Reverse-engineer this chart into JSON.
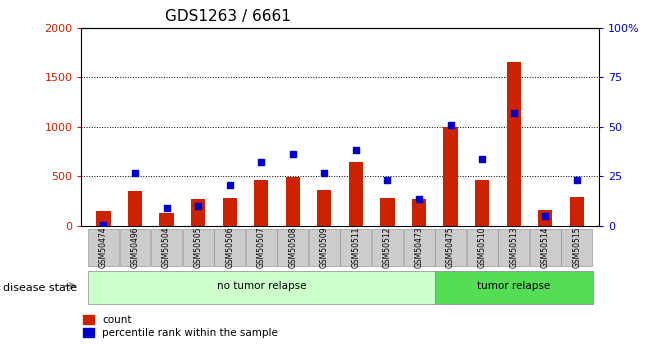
{
  "title": "GDS1263 / 6661",
  "samples": [
    "GSM50474",
    "GSM50496",
    "GSM50504",
    "GSM50505",
    "GSM50506",
    "GSM50507",
    "GSM50508",
    "GSM50509",
    "GSM50511",
    "GSM50512",
    "GSM50473",
    "GSM50475",
    "GSM50510",
    "GSM50513",
    "GSM50514",
    "GSM50515"
  ],
  "count": [
    150,
    350,
    130,
    270,
    280,
    460,
    490,
    360,
    650,
    280,
    270,
    1000,
    460,
    1650,
    160,
    290
  ],
  "percentile_left": [
    10,
    530,
    180,
    200,
    410,
    640,
    730,
    530,
    770,
    460,
    270,
    1020,
    680,
    1140,
    100,
    460
  ],
  "no_tumor_count": 11,
  "tumor_count": 5,
  "left_ylim": [
    0,
    2000
  ],
  "left_yticks": [
    0,
    500,
    1000,
    1500,
    2000
  ],
  "right_yticks_left": [
    0,
    500,
    1000,
    1500,
    2000
  ],
  "right_yticklabels": [
    "0",
    "25",
    "50",
    "75",
    "100%"
  ],
  "bar_color_count": "#cc2200",
  "bar_color_pct": "#0000cc",
  "no_tumor_bg": "#ccffcc",
  "tumor_bg": "#55dd55",
  "xticklabel_bg": "#cccccc",
  "legend_count_label": "count",
  "legend_pct_label": "percentile rank within the sample",
  "disease_state_label": "disease state",
  "no_tumor_label": "no tumor relapse",
  "tumor_label": "tumor relapse"
}
